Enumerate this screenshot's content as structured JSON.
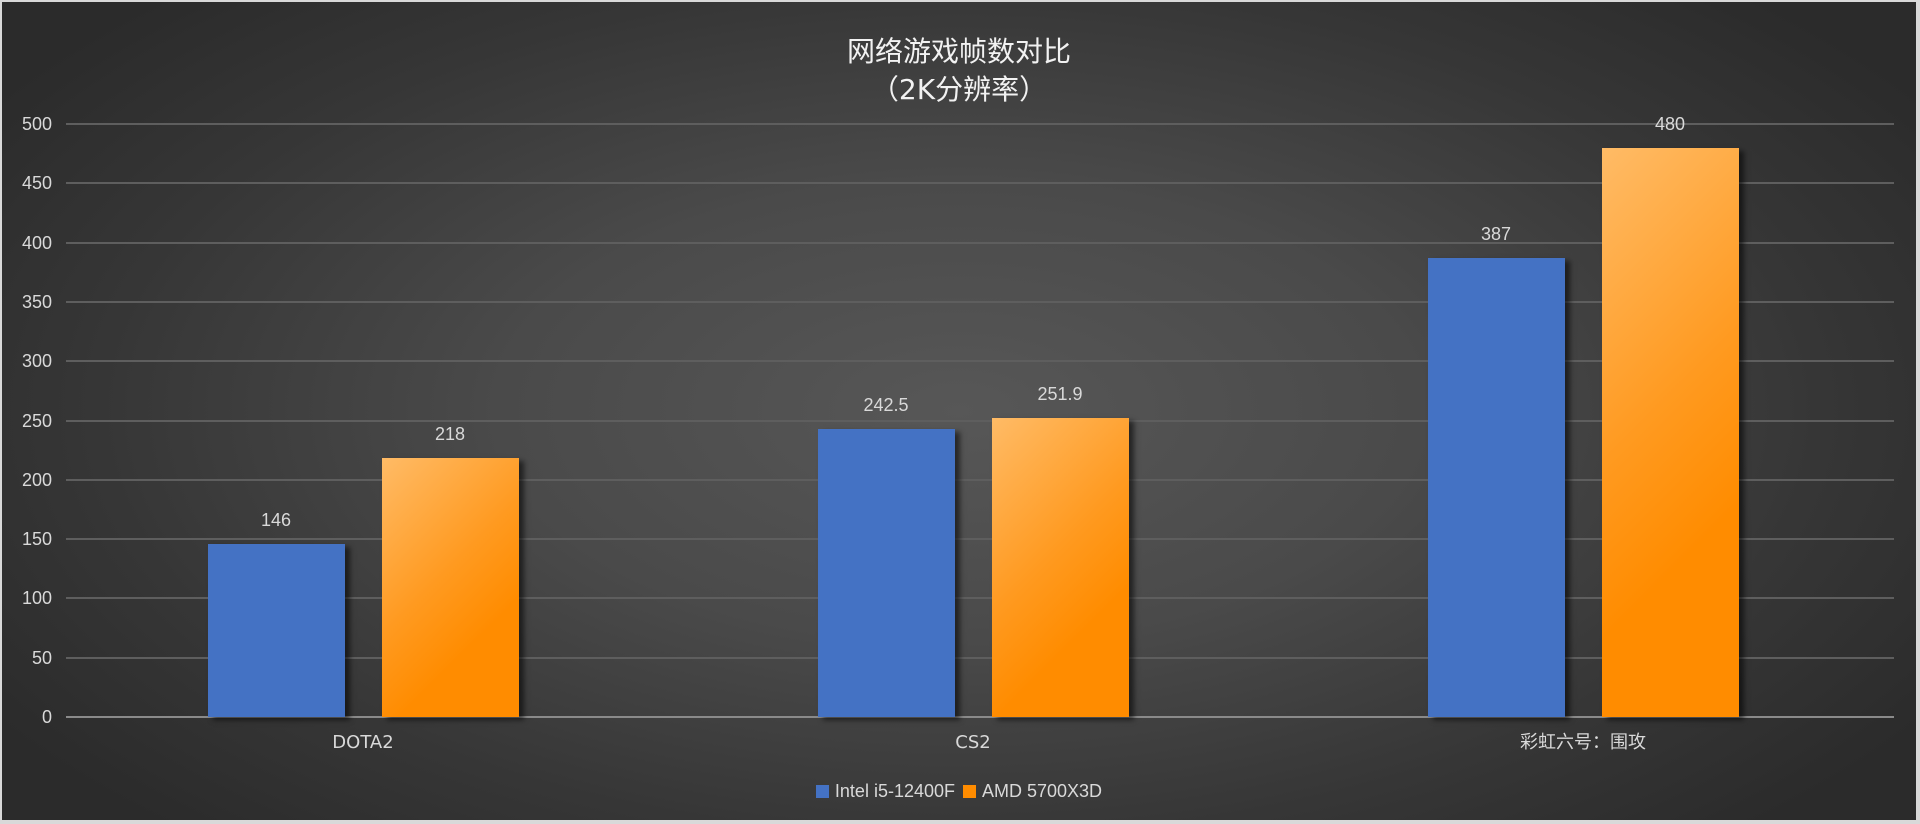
{
  "chart_data": {
    "type": "bar",
    "title": "网络游戏帧数对比",
    "subtitle": "（2K分辨率）",
    "categories": [
      "DOTA2",
      "CS2",
      "彩虹六号：围攻"
    ],
    "series": [
      {
        "name": "Intel i5-12400F",
        "color": "#4472c4",
        "values": [
          146,
          242.5,
          387
        ]
      },
      {
        "name": "AMD 5700X3D",
        "color": "#ff8c00",
        "values": [
          218,
          251.9,
          480
        ]
      }
    ],
    "value_labels": [
      [
        "146",
        "242.5",
        "387"
      ],
      [
        "218",
        "251.9",
        "480"
      ]
    ],
    "xlabel": "",
    "ylabel": "",
    "ylim": [
      0,
      500
    ],
    "yticks": [
      "500",
      "450",
      "400",
      "350",
      "300",
      "250",
      "200",
      "150",
      "100",
      "50",
      "0"
    ],
    "grid": true,
    "legend_position": "bottom"
  },
  "legend": {
    "items": [
      {
        "label": "Intel i5-12400F",
        "color": "#4472c4"
      },
      {
        "label": "AMD 5700X3D",
        "color": "#ff8c00"
      }
    ]
  }
}
